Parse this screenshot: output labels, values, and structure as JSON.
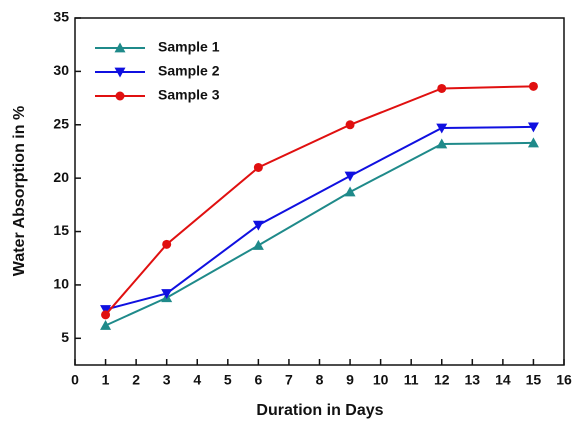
{
  "chart_data": {
    "type": "line",
    "x_label": "Duration in Days",
    "y_label": "Water Absorption in %",
    "xlim": [
      0,
      16
    ],
    "xticks": [
      0,
      1,
      2,
      3,
      4,
      5,
      6,
      7,
      8,
      9,
      10,
      11,
      12,
      13,
      14,
      15,
      16
    ],
    "ylim": [
      2.5,
      35
    ],
    "yticks": [
      5,
      10,
      15,
      20,
      25,
      30,
      35
    ],
    "legend": "upper left",
    "series": [
      {
        "name": "Sample 1",
        "color": "#1f8a8a",
        "marker": "triangle-up",
        "x": [
          1,
          3,
          6,
          9,
          12,
          15
        ],
        "values": [
          6.2,
          8.8,
          13.7,
          18.7,
          23.2,
          23.3
        ]
      },
      {
        "name": "Sample 2",
        "color": "#1010e0",
        "marker": "triangle-down",
        "x": [
          1,
          3,
          6,
          9,
          12,
          15
        ],
        "values": [
          7.7,
          9.2,
          15.6,
          20.2,
          24.7,
          24.8
        ]
      },
      {
        "name": "Sample 3",
        "color": "#e01010",
        "marker": "circle",
        "x": [
          1,
          3,
          6,
          9,
          12,
          15
        ],
        "values": [
          7.2,
          13.8,
          21.0,
          25.0,
          28.4,
          28.6
        ]
      }
    ]
  }
}
